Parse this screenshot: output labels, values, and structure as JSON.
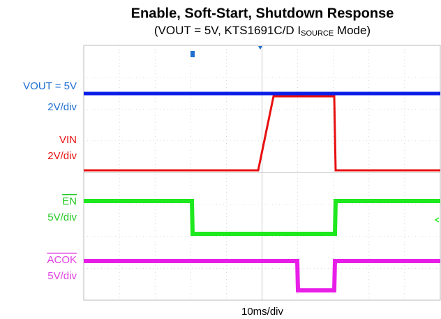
{
  "title": "Enable, Soft-Start, Shutdown Response",
  "subtitle": {
    "before": "(VOUT = 5V, KTS1691C/D I",
    "subscript": "SOURCE",
    "after": " Mode)"
  },
  "channels": [
    {
      "name": "VOUT = 5V",
      "scale": "2V/div"
    },
    {
      "name": "VIN",
      "scale": "2V/div"
    },
    {
      "name": "EN",
      "scale": "5V/div"
    },
    {
      "name": "ACOK",
      "scale": "5V/div"
    }
  ],
  "timebase": "10ms/div"
}
